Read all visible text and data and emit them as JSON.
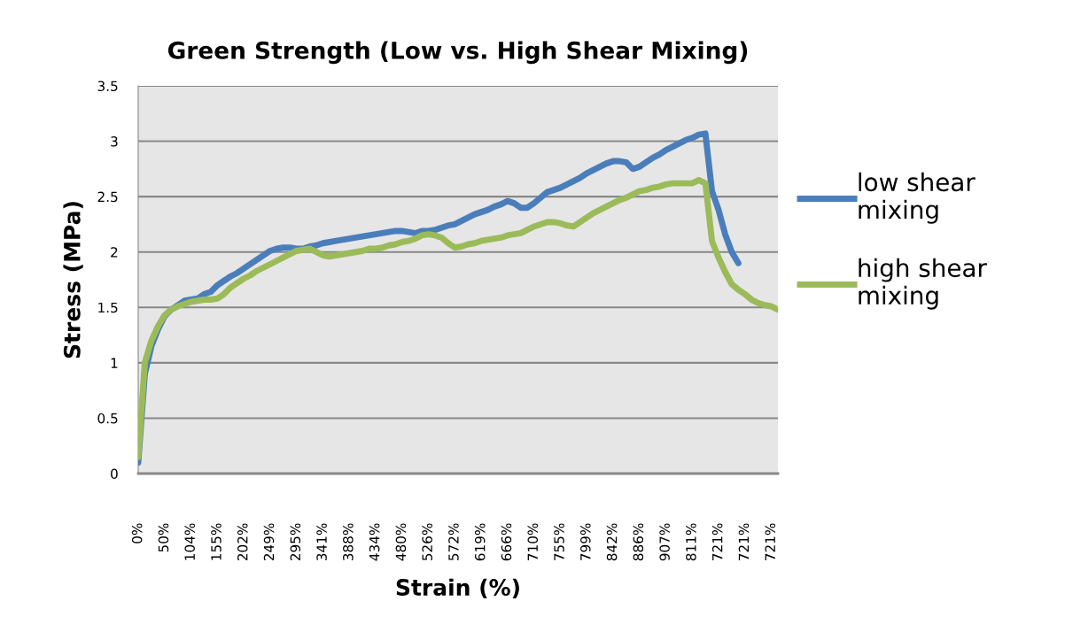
{
  "chart_data": {
    "type": "line",
    "title": "Green Strength (Low vs. High Shear Mixing)",
    "xlabel": "Strain (%)",
    "ylabel": "Stress (MPa)",
    "categories": [
      "0%",
      null,
      null,
      null,
      "50%",
      null,
      null,
      null,
      "104%",
      null,
      null,
      null,
      "155%",
      null,
      null,
      null,
      "202%",
      null,
      null,
      null,
      "249%",
      null,
      null,
      null,
      "295%",
      null,
      null,
      null,
      "341%",
      null,
      null,
      null,
      "388%",
      null,
      null,
      null,
      "434%",
      null,
      null,
      null,
      "480%",
      null,
      null,
      null,
      "526%",
      null,
      null,
      null,
      "572%",
      null,
      null,
      null,
      "619%",
      null,
      null,
      null,
      "666%",
      null,
      null,
      null,
      "710%",
      null,
      null,
      null,
      "755%",
      null,
      null,
      null,
      "799%",
      null,
      null,
      null,
      "842%",
      null,
      null,
      null,
      "886%",
      null,
      null,
      null,
      "907%",
      null,
      null,
      null,
      "811%",
      null,
      null,
      null,
      "721%",
      null,
      null,
      null,
      "721%",
      null,
      null,
      null,
      "721%",
      null
    ],
    "series": [
      {
        "name": "low shear\nmixing",
        "color": "#4a7ebb",
        "values": [
          0.1,
          0.9,
          1.15,
          1.3,
          1.42,
          1.48,
          1.52,
          1.56,
          1.57,
          1.58,
          1.62,
          1.64,
          1.7,
          1.74,
          1.78,
          1.81,
          1.85,
          1.89,
          1.93,
          1.97,
          2.01,
          2.03,
          2.04,
          2.04,
          2.03,
          2.03,
          2.05,
          2.06,
          2.08,
          2.09,
          2.1,
          2.11,
          2.12,
          2.13,
          2.14,
          2.15,
          2.16,
          2.17,
          2.18,
          2.19,
          2.19,
          2.18,
          2.17,
          2.19,
          2.19,
          2.2,
          2.22,
          2.24,
          2.25,
          2.28,
          2.31,
          2.34,
          2.36,
          2.38,
          2.41,
          2.43,
          2.46,
          2.44,
          2.4,
          2.4,
          2.44,
          2.49,
          2.54,
          2.56,
          2.58,
          2.61,
          2.64,
          2.67,
          2.71,
          2.74,
          2.77,
          2.8,
          2.82,
          2.82,
          2.81,
          2.75,
          2.77,
          2.81,
          2.85,
          2.88,
          2.92,
          2.95,
          2.98,
          3.01,
          3.03,
          3.06,
          3.07,
          2.55,
          2.38,
          2.16,
          2.0,
          1.9,
          null,
          null,
          null,
          null,
          null,
          null
        ]
      },
      {
        "name": "high shear\nmixing",
        "color": "#9bbb59",
        "values": [
          0.15,
          1.0,
          1.2,
          1.33,
          1.43,
          1.48,
          1.51,
          1.53,
          1.55,
          1.56,
          1.57,
          1.57,
          1.58,
          1.62,
          1.68,
          1.72,
          1.76,
          1.79,
          1.83,
          1.86,
          1.89,
          1.92,
          1.95,
          1.98,
          2.01,
          2.02,
          2.03,
          2.0,
          1.97,
          1.96,
          1.97,
          1.98,
          1.99,
          2.0,
          2.01,
          2.03,
          2.03,
          2.04,
          2.06,
          2.07,
          2.09,
          2.1,
          2.12,
          2.15,
          2.16,
          2.15,
          2.13,
          2.08,
          2.04,
          2.05,
          2.07,
          2.08,
          2.1,
          2.11,
          2.12,
          2.13,
          2.15,
          2.16,
          2.17,
          2.2,
          2.23,
          2.25,
          2.27,
          2.27,
          2.26,
          2.24,
          2.23,
          2.27,
          2.31,
          2.35,
          2.38,
          2.41,
          2.44,
          2.47,
          2.49,
          2.52,
          2.55,
          2.56,
          2.58,
          2.59,
          2.61,
          2.62,
          2.62,
          2.62,
          2.62,
          2.65,
          2.62,
          2.1,
          1.95,
          1.82,
          1.71,
          1.66,
          1.62,
          1.57,
          1.54,
          1.52,
          1.51,
          1.48
        ]
      }
    ],
    "ylim": [
      0,
      3.5
    ],
    "yticks": [
      0,
      0.5,
      1,
      1.5,
      2,
      2.5,
      3,
      3.5
    ],
    "grid": "y",
    "legend": "right",
    "marker": "none",
    "line_style": "solid"
  }
}
